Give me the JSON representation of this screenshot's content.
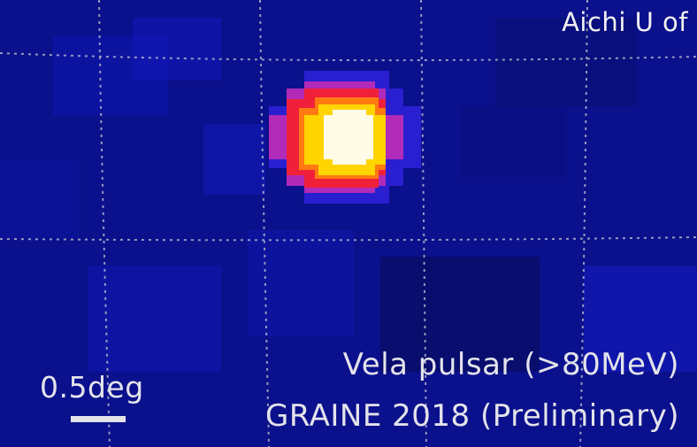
{
  "corner_text": "Aichi U of",
  "source_label": "Vela pulsar (>80MeV)",
  "experiment_label": "GRAINE 2018 (Preliminary)",
  "scale_label": "0.5deg",
  "colors": {
    "background": "#0a0f8a",
    "grid": "#c8c8d0",
    "peak": "#fffbe6",
    "text": "#e3e3ea"
  }
}
